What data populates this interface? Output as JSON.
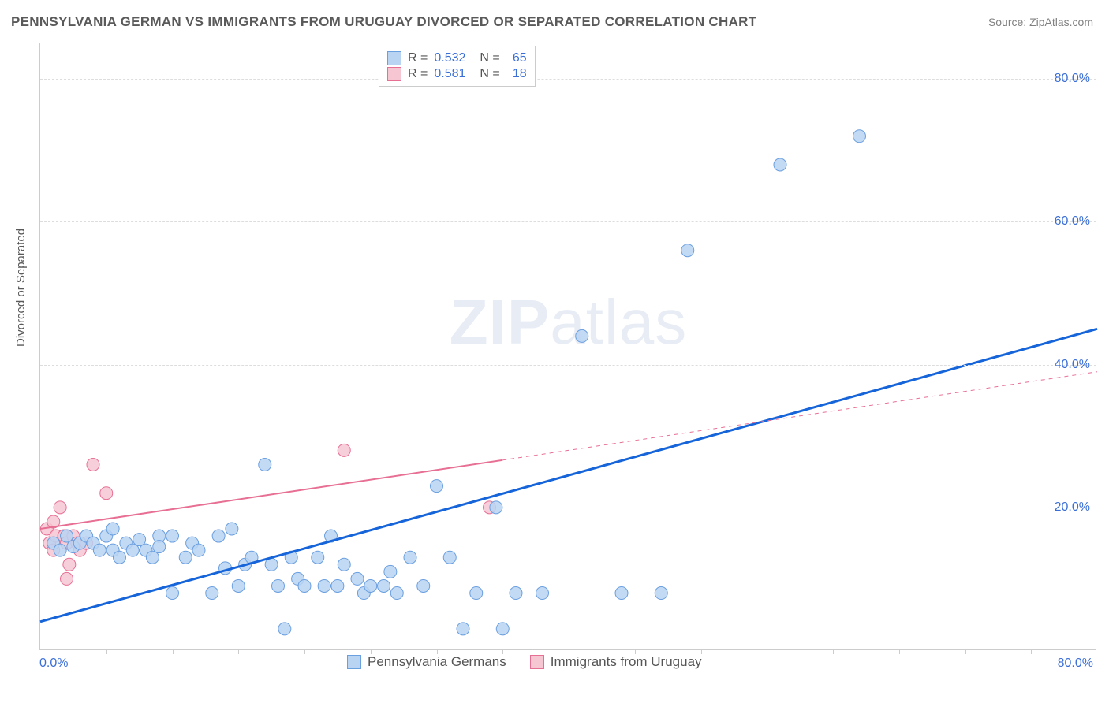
{
  "title": "PENNSYLVANIA GERMAN VS IMMIGRANTS FROM URUGUAY DIVORCED OR SEPARATED CORRELATION CHART",
  "source": "Source: ZipAtlas.com",
  "watermark": {
    "bold": "ZIP",
    "light": "atlas"
  },
  "y_axis_title": "Divorced or Separated",
  "chart": {
    "type": "scatter-with-regression",
    "xlim": [
      0,
      80
    ],
    "ylim": [
      0,
      85
    ],
    "x_ticks_minor_step": 5,
    "y_ticks": [
      20,
      40,
      60,
      80
    ],
    "y_tick_labels": [
      "20.0%",
      "40.0%",
      "60.0%",
      "80.0%"
    ],
    "x_min_label": "0.0%",
    "x_max_label": "80.0%",
    "grid_color": "#dddddd",
    "background_color": "#ffffff",
    "axis_color": "#cccccc"
  },
  "series": [
    {
      "name": "Pennsylvania Germans",
      "marker_fill": "#b9d3f2",
      "marker_stroke": "#6a9fe0",
      "marker_radius": 8,
      "line_color": "#1664d9",
      "line_width": 3,
      "line_dash": "none",
      "r": "0.532",
      "n": "65",
      "reg_start": [
        0,
        4
      ],
      "reg_end": [
        80,
        45
      ],
      "points": [
        [
          1,
          15
        ],
        [
          1.5,
          14
        ],
        [
          2,
          16
        ],
        [
          2.5,
          14.5
        ],
        [
          3,
          15
        ],
        [
          3.5,
          16
        ],
        [
          4,
          15
        ],
        [
          4.5,
          14
        ],
        [
          5,
          16
        ],
        [
          5.5,
          14
        ],
        [
          5.5,
          17
        ],
        [
          6,
          13
        ],
        [
          6.5,
          15
        ],
        [
          7,
          14
        ],
        [
          7.5,
          15.5
        ],
        [
          8,
          14
        ],
        [
          8.5,
          13
        ],
        [
          9,
          16
        ],
        [
          9,
          14.5
        ],
        [
          10,
          16
        ],
        [
          10,
          8
        ],
        [
          11,
          13
        ],
        [
          11.5,
          15
        ],
        [
          12,
          14
        ],
        [
          13,
          8
        ],
        [
          13.5,
          16
        ],
        [
          14,
          11.5
        ],
        [
          14.5,
          17
        ],
        [
          15,
          9
        ],
        [
          15.5,
          12
        ],
        [
          16,
          13
        ],
        [
          17,
          26
        ],
        [
          17.5,
          12
        ],
        [
          18,
          9
        ],
        [
          18.5,
          3
        ],
        [
          19,
          13
        ],
        [
          19.5,
          10
        ],
        [
          20,
          9
        ],
        [
          21,
          13
        ],
        [
          21.5,
          9
        ],
        [
          22,
          16
        ],
        [
          22.5,
          9
        ],
        [
          23,
          12
        ],
        [
          24,
          10
        ],
        [
          24.5,
          8
        ],
        [
          25,
          9
        ],
        [
          26,
          9
        ],
        [
          26.5,
          11
        ],
        [
          27,
          8
        ],
        [
          28,
          13
        ],
        [
          29,
          9
        ],
        [
          30,
          23
        ],
        [
          31,
          13
        ],
        [
          32,
          3
        ],
        [
          33,
          8
        ],
        [
          34.5,
          20
        ],
        [
          35,
          3
        ],
        [
          36,
          8
        ],
        [
          38,
          8
        ],
        [
          41,
          44
        ],
        [
          44,
          8
        ],
        [
          47,
          8
        ],
        [
          49,
          56
        ],
        [
          56,
          68
        ],
        [
          62,
          72
        ]
      ]
    },
    {
      "name": "Immigrants from Uruguay",
      "marker_fill": "#f6c7d3",
      "marker_stroke": "#e86f94",
      "marker_radius": 8,
      "line_color": "#e86f94",
      "line_width": 2,
      "line_dash": "solid-then-dash",
      "dash_split_x": 35,
      "r": "0.581",
      "n": "18",
      "reg_start": [
        0,
        17
      ],
      "reg_end": [
        80,
        39
      ],
      "points": [
        [
          0.5,
          17
        ],
        [
          0.7,
          15
        ],
        [
          1,
          18
        ],
        [
          1,
          14
        ],
        [
          1.2,
          16
        ],
        [
          1.5,
          20
        ],
        [
          1.8,
          16
        ],
        [
          2,
          15
        ],
        [
          2,
          10
        ],
        [
          2.2,
          12
        ],
        [
          2.5,
          16
        ],
        [
          2.8,
          15
        ],
        [
          3,
          14
        ],
        [
          3.5,
          15
        ],
        [
          4,
          26
        ],
        [
          5,
          22
        ],
        [
          23,
          28
        ],
        [
          34,
          20
        ]
      ]
    }
  ],
  "legend_top": {
    "rows": [
      {
        "swatch_fill": "#b9d3f2",
        "swatch_stroke": "#6a9fe0",
        "r_label": "R =",
        "r": "0.532",
        "n_label": "N =",
        "n": "65"
      },
      {
        "swatch_fill": "#f6c7d3",
        "swatch_stroke": "#e86f94",
        "r_label": "R =",
        "r": "0.581",
        "n_label": "N =",
        "n": "18"
      }
    ]
  },
  "legend_bottom": [
    {
      "swatch_fill": "#b9d3f2",
      "swatch_stroke": "#6a9fe0",
      "label": "Pennsylvania Germans"
    },
    {
      "swatch_fill": "#f6c7d3",
      "swatch_stroke": "#e86f94",
      "label": "Immigrants from Uruguay"
    }
  ]
}
